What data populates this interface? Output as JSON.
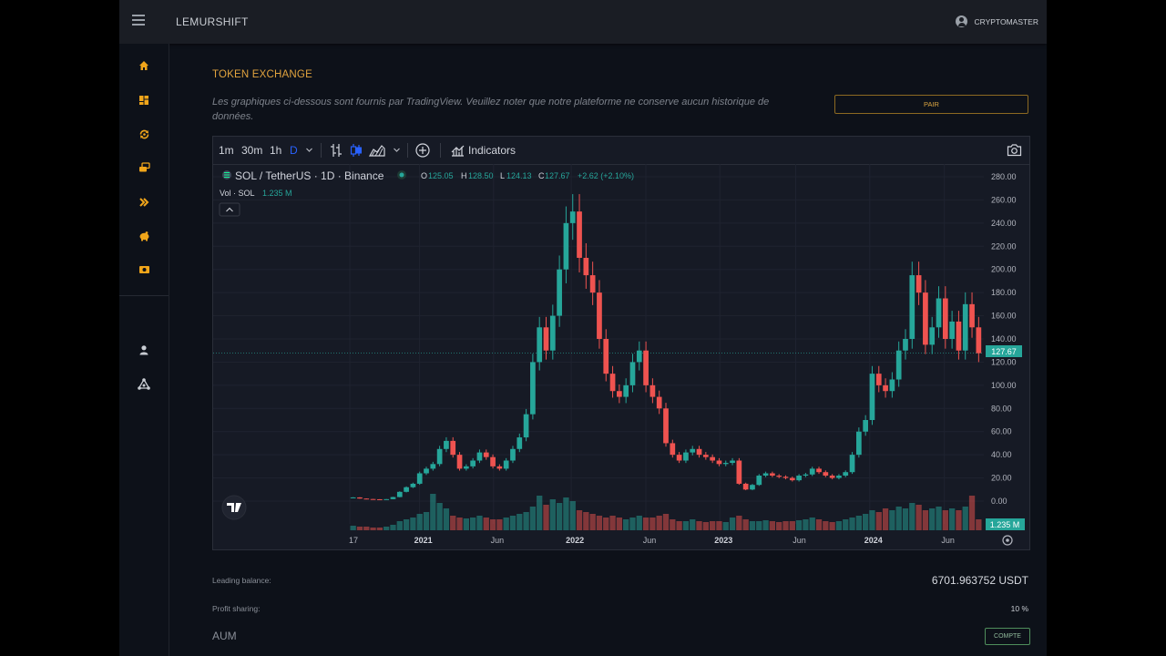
{
  "app": {
    "brand": "LEMURSHIFT",
    "username": "CRYPTOMASTER"
  },
  "sidebar": {
    "items": [
      {
        "icon": "home-icon"
      },
      {
        "icon": "dashboard-icon"
      },
      {
        "icon": "exchange-icon"
      },
      {
        "icon": "transfer-icon"
      },
      {
        "icon": "chevrons-right-icon"
      },
      {
        "icon": "piggy-bank-icon"
      },
      {
        "icon": "cash-icon"
      },
      {
        "icon": "profile-icon"
      },
      {
        "icon": "network-icon"
      }
    ]
  },
  "page": {
    "title": "TOKEN EXCHANGE",
    "description": "Les graphiques ci-dessous sont fournis par TradingView. Veuillez noter que notre plateforme ne conserve aucun historique de données.",
    "pair_button": "PAIR"
  },
  "toolbar": {
    "intervals": [
      "1m",
      "30m",
      "1h",
      "D"
    ],
    "active_interval": "D",
    "indicators_label": "Indicators"
  },
  "chart_data": {
    "type": "candlestick",
    "symbol": "SOL / TetherUS · 1D · Binance",
    "ohlc": {
      "O": "125.05",
      "H": "128.50",
      "L": "124.13",
      "C": "127.67",
      "change": "+2.62 (+2.10%)"
    },
    "volume_label": "Vol · SOL",
    "volume_value": "1.235 M",
    "last_price": "127.67",
    "y_ticks": [
      "280.00",
      "260.00",
      "240.00",
      "220.00",
      "200.00",
      "180.00",
      "160.00",
      "140.00",
      "120.00",
      "100.00",
      "80.00",
      "60.00",
      "40.00",
      "20.00",
      "0.00"
    ],
    "x_ticks": [
      "17",
      "2021",
      "Jun",
      "2022",
      "Jun",
      "2023",
      "Jun",
      "2024",
      "Jun"
    ],
    "ylim": [
      0,
      280
    ],
    "series": [
      {
        "name": "SOL / TetherUS",
        "close": [
          3.2,
          2.2,
          1.8,
          1.6,
          1.5,
          1.7,
          3.5,
          8,
          12,
          15,
          24,
          28,
          32,
          45,
          52,
          40,
          28,
          30,
          35,
          42,
          38,
          30,
          28,
          35,
          45,
          55,
          75,
          120,
          150,
          130,
          160,
          200,
          240,
          250,
          210,
          195,
          180,
          140,
          110,
          95,
          90,
          100,
          120,
          130,
          100,
          90,
          80,
          50,
          40,
          35,
          42,
          45,
          40,
          38,
          35,
          32,
          33,
          35,
          15,
          10,
          14,
          22,
          24,
          22,
          21,
          20,
          18,
          22,
          23,
          28,
          25,
          22,
          20,
          22,
          25,
          40,
          60,
          70,
          110,
          100,
          95,
          105,
          130,
          140,
          195,
          180,
          135,
          150,
          175,
          140,
          155,
          130,
          170,
          150,
          127.67
        ]
      }
    ],
    "volume": [
      5,
      4,
      4,
      3,
      3,
      4,
      6,
      10,
      12,
      14,
      18,
      20,
      40,
      30,
      24,
      16,
      14,
      13,
      14,
      16,
      14,
      12,
      12,
      14,
      16,
      18,
      20,
      26,
      38,
      28,
      34,
      30,
      36,
      32,
      22,
      20,
      18,
      16,
      14,
      16,
      14,
      12,
      14,
      16,
      14,
      14,
      16,
      18,
      12,
      10,
      10,
      12,
      10,
      9,
      10,
      10,
      9,
      14,
      16,
      12,
      10,
      10,
      11,
      10,
      9,
      10,
      10,
      11,
      12,
      14,
      12,
      10,
      9,
      10,
      12,
      14,
      16,
      18,
      22,
      20,
      24,
      22,
      26,
      24,
      30,
      28,
      22,
      24,
      26,
      22,
      24,
      22,
      26,
      38,
      12
    ]
  },
  "account": {
    "leading_balance_label": "Leading balance:",
    "leading_balance_value": "6701.963752 USDT",
    "profit_sharing_label": "Profit sharing:",
    "profit_sharing_value": "10 %",
    "aum_label": "AUM",
    "compte_button": "COMPTE"
  },
  "colors": {
    "accent": "#f0a51a",
    "up": "#26a69a",
    "down": "#ef5350"
  }
}
